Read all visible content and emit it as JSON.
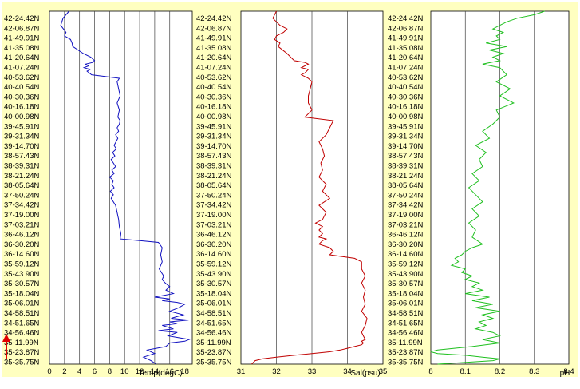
{
  "colors": {
    "panel_bg": "#ffffc0",
    "plot_bg": "#ffffff",
    "grid": "#404040",
    "arrow": "#e00000"
  },
  "lat_labels": [
    "42-24.42N",
    "42-06.87N",
    "41-49.91N",
    "41-35.08N",
    "41-20.64N",
    "41-07.24N",
    "40-53.62N",
    "40-40.54N",
    "40-30.36N",
    "40-16.18N",
    "40-00.98N",
    "39-45.91N",
    "39-31.34N",
    "39-14.70N",
    "38-57.43N",
    "38-39.31N",
    "38-21.24N",
    "38-05.64N",
    "37-50.24N",
    "37-34.42N",
    "37-19.00N",
    "37-03.21N",
    "36-46.12N",
    "36-30.20N",
    "36-14.60N",
    "35-59.12N",
    "35-43.90N",
    "35-30.57N",
    "35-18.04N",
    "35-06.01N",
    "34-58.51N",
    "34-51.65N",
    "34-56.46N",
    "35-11.99N",
    "35-23.87N",
    "35-35.75N"
  ],
  "chart_data": [
    {
      "type": "line",
      "xlabel": "Temp(degC)",
      "xticks": [
        0,
        2,
        4,
        6,
        8,
        10,
        12,
        14,
        16,
        18
      ],
      "xlim": [
        0,
        19
      ],
      "color": "#1010c0",
      "series": [
        {
          "x": [
            2.6,
            1.8,
            1.5,
            2.2,
            2.0,
            2.8,
            3.0,
            3.1,
            4.5,
            5.5,
            6.0,
            5.8,
            4.8,
            5.2,
            4.6,
            5.4,
            5.0,
            5.6,
            9.3,
            9.0,
            9.2,
            9.4,
            9.0,
            9.3,
            9.1,
            9.4,
            9.3,
            9.0,
            9.2,
            8.8,
            9.1,
            8.6,
            8.9,
            8.4,
            8.7,
            8.2,
            8.8,
            8.3,
            8.6,
            8.0,
            8.5,
            8.3,
            8.6,
            8.1,
            8.5,
            8.2,
            8.8,
            9.0,
            9.2,
            9.3,
            9.5,
            9.4,
            12.0,
            14.5,
            15.0,
            14.8,
            15.0,
            14.6,
            15.2,
            15.0,
            15.4,
            16.0,
            15.5,
            16.5,
            14.0,
            16.0,
            15.0,
            17.0,
            18.0,
            17.2,
            16.0,
            17.8,
            16.2,
            18.5,
            16.0,
            17.0,
            15.0,
            16.5,
            14.5,
            17.0,
            15.8,
            18.6,
            18.0,
            16.0,
            15.5,
            13.0,
            14.0,
            12.5,
            13.5,
            14.2
          ],
          "y": [
            0.0,
            0.02,
            0.04,
            0.06,
            0.07,
            0.08,
            0.09,
            0.1,
            0.12,
            0.13,
            0.14,
            0.145,
            0.15,
            0.155,
            0.16,
            0.165,
            0.17,
            0.18,
            0.19,
            0.2,
            0.22,
            0.24,
            0.26,
            0.28,
            0.3,
            0.31,
            0.32,
            0.33,
            0.34,
            0.35,
            0.36,
            0.38,
            0.39,
            0.4,
            0.41,
            0.42,
            0.44,
            0.45,
            0.46,
            0.47,
            0.48,
            0.49,
            0.5,
            0.51,
            0.52,
            0.53,
            0.55,
            0.57,
            0.59,
            0.61,
            0.63,
            0.645,
            0.65,
            0.655,
            0.67,
            0.69,
            0.71,
            0.73,
            0.75,
            0.76,
            0.77,
            0.78,
            0.79,
            0.8,
            0.81,
            0.815,
            0.82,
            0.825,
            0.83,
            0.84,
            0.85,
            0.86,
            0.87,
            0.875,
            0.88,
            0.885,
            0.89,
            0.9,
            0.905,
            0.91,
            0.92,
            0.93,
            0.935,
            0.94,
            0.95,
            0.96,
            0.97,
            0.98,
            0.99,
            1.0
          ]
        }
      ]
    },
    {
      "type": "line",
      "xlabel": "Sal(psu)",
      "xticks": [
        31,
        32,
        33,
        34,
        35
      ],
      "xlim": [
        31,
        35
      ],
      "color": "#c00000",
      "series": [
        {
          "x": [
            32.0,
            31.9,
            32.1,
            32.3,
            32.2,
            32.0,
            31.95,
            32.1,
            32.05,
            32.3,
            32.4,
            32.5,
            32.8,
            32.9,
            32.8,
            32.7,
            32.9,
            32.85,
            32.8,
            32.7,
            32.9,
            33.0,
            32.95,
            32.9,
            32.9,
            33.0,
            32.8,
            33.6,
            33.5,
            33.4,
            33.2,
            33.3,
            33.35,
            33.25,
            33.3,
            33.2,
            33.4,
            33.3,
            33.5,
            33.2,
            33.4,
            33.3,
            33.1,
            33.3,
            33.2,
            33.3,
            33.2,
            33.4,
            33.3,
            33.2,
            33.5,
            33.6,
            33.5,
            34.2,
            34.4,
            34.4,
            34.5,
            34.4,
            34.5,
            34.45,
            34.5,
            34.4,
            34.55,
            34.5,
            34.4,
            34.45,
            34.5,
            34.4,
            34.45,
            34.4,
            34.2,
            34.0,
            33.8,
            33.5,
            33.0,
            32.5,
            32.0,
            31.6,
            31.4,
            31.3
          ],
          "y": [
            0.0,
            0.02,
            0.04,
            0.05,
            0.06,
            0.07,
            0.08,
            0.09,
            0.1,
            0.12,
            0.13,
            0.14,
            0.145,
            0.15,
            0.155,
            0.16,
            0.165,
            0.17,
            0.175,
            0.18,
            0.19,
            0.2,
            0.22,
            0.24,
            0.26,
            0.28,
            0.3,
            0.31,
            0.33,
            0.35,
            0.37,
            0.39,
            0.41,
            0.43,
            0.45,
            0.47,
            0.49,
            0.51,
            0.53,
            0.55,
            0.57,
            0.59,
            0.6,
            0.61,
            0.62,
            0.63,
            0.64,
            0.645,
            0.65,
            0.66,
            0.67,
            0.68,
            0.69,
            0.7,
            0.71,
            0.73,
            0.75,
            0.77,
            0.79,
            0.81,
            0.83,
            0.85,
            0.87,
            0.89,
            0.91,
            0.92,
            0.93,
            0.935,
            0.94,
            0.945,
            0.95,
            0.955,
            0.96,
            0.965,
            0.97,
            0.975,
            0.98,
            0.985,
            0.99,
            1.0
          ]
        }
      ]
    },
    {
      "type": "line",
      "xlabel": "pH",
      "xticks": [
        8,
        8.1,
        8.2,
        8.3,
        8.4
      ],
      "xlim": [
        8,
        8.4
      ],
      "color": "#20c020",
      "series": [
        {
          "x": [
            8.33,
            8.3,
            8.25,
            8.22,
            8.2,
            8.18,
            8.21,
            8.19,
            8.2,
            8.16,
            8.22,
            8.17,
            8.21,
            8.18,
            8.2,
            8.15,
            8.2,
            8.22,
            8.19,
            8.23,
            8.2,
            8.24,
            8.19,
            8.2,
            8.18,
            8.15,
            8.17,
            8.13,
            8.16,
            8.14,
            8.15,
            8.12,
            8.14,
            8.11,
            8.13,
            8.15,
            8.12,
            8.14,
            8.11,
            8.13,
            8.12,
            8.15,
            8.12,
            8.1,
            8.09,
            8.07,
            8.08,
            8.06,
            8.1,
            8.09,
            8.12,
            8.1,
            8.14,
            8.12,
            8.15,
            8.1,
            8.17,
            8.12,
            8.18,
            8.13,
            8.2,
            8.15,
            8.18,
            8.14,
            8.16,
            8.13,
            8.18,
            8.2,
            8.15,
            8.2,
            8.12,
            8.02,
            8.0,
            8.02,
            8.1,
            8.15,
            8.2,
            8.18,
            8.02
          ],
          "y": [
            0.0,
            0.01,
            0.02,
            0.03,
            0.04,
            0.05,
            0.06,
            0.07,
            0.08,
            0.09,
            0.1,
            0.11,
            0.12,
            0.13,
            0.14,
            0.15,
            0.16,
            0.18,
            0.2,
            0.22,
            0.24,
            0.26,
            0.28,
            0.3,
            0.32,
            0.34,
            0.36,
            0.38,
            0.4,
            0.42,
            0.44,
            0.46,
            0.48,
            0.5,
            0.52,
            0.54,
            0.56,
            0.58,
            0.6,
            0.62,
            0.64,
            0.66,
            0.67,
            0.68,
            0.69,
            0.7,
            0.71,
            0.72,
            0.73,
            0.74,
            0.75,
            0.76,
            0.77,
            0.78,
            0.79,
            0.8,
            0.81,
            0.82,
            0.83,
            0.84,
            0.85,
            0.86,
            0.87,
            0.88,
            0.89,
            0.9,
            0.91,
            0.92,
            0.93,
            0.94,
            0.95,
            0.96,
            0.965,
            0.97,
            0.975,
            0.98,
            0.985,
            0.99,
            1.0
          ]
        }
      ]
    }
  ]
}
